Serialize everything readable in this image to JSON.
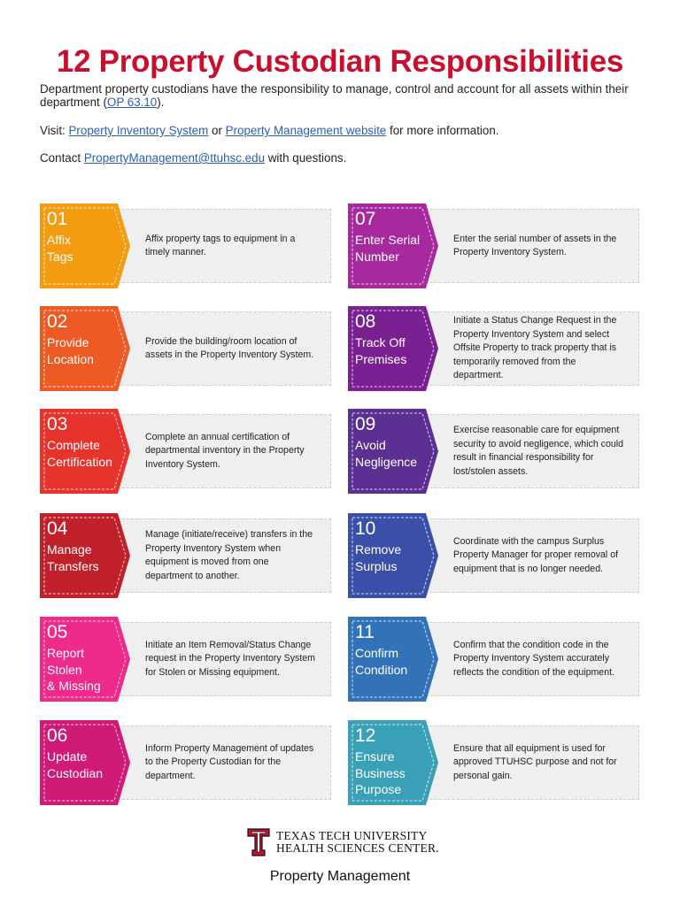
{
  "title": "12 Property Custodian Responsibilities",
  "intro": {
    "text_before": "Department property custodians have the responsibility to manage, control and account for all assets within their department (",
    "link": "OP 63.10",
    "text_after": ")."
  },
  "visit": {
    "prefix": "Visit: ",
    "link1": "Property Inventory System",
    "middle": " or ",
    "link2": "Property Management website",
    "suffix": " for more information."
  },
  "contact": {
    "prefix": "Contact ",
    "email": "PropertyManagement@ttuhsc.edu",
    "suffix": " with questions."
  },
  "items": [
    {
      "num": "01",
      "label": "Affix\nTags",
      "desc": "Affix property tags to equipment in a timely manner.",
      "color": "#f39c12"
    },
    {
      "num": "02",
      "label": "Provide\nLocation",
      "desc": "Provide the building/room location of assets in the Property Inventory System.",
      "color": "#ee5a24"
    },
    {
      "num": "03",
      "label": "Complete\nCertification",
      "desc": "Complete an annual certification of departmental inventory in the Property Inventory System.",
      "color": "#e8322c"
    },
    {
      "num": "04",
      "label": "Manage\nTransfers",
      "desc": "Manage (initiate/receive) transfers in the Property Inventory System when equipment is moved from one department to another.",
      "color": "#c0202a"
    },
    {
      "num": "05",
      "label": "Report\nStolen\n& Missing",
      "desc": "Initiate an Item Removal/Status Change request in the Property Inventory System for Stolen or Missing equipment.",
      "color": "#ee2a8a"
    },
    {
      "num": "06",
      "label": "Update\nCustodian",
      "desc": "Inform Property Management of updates to the Property Custodian for the department.",
      "color": "#d01a78"
    },
    {
      "num": "07",
      "label": "Enter Serial\nNumber",
      "desc": "Enter the serial number of assets in the Property Inventory System.",
      "color": "#a62a9e"
    },
    {
      "num": "08",
      "label": "Track Off\nPremises",
      "desc": "Initiate a Status Change Request in the Property Inventory System and select Offsite Property to track property that is temporarily removed from the department.",
      "color": "#7b2092"
    },
    {
      "num": "09",
      "label": "Avoid\nNegligence",
      "desc": "Exercise reasonable care for equipment security to avoid negligence, which could result in financial responsibility for lost/stolen assets.",
      "color": "#5b3092"
    },
    {
      "num": "10",
      "label": "Remove\nSurplus",
      "desc": "Coordinate with the campus Surplus Property Manager for proper removal of equipment that is no longer needed.",
      "color": "#3a4fa8"
    },
    {
      "num": "11",
      "label": "Confirm\nCondition",
      "desc": "Confirm that the condition code in the Property Inventory System accurately reflects the condition of the equipment.",
      "color": "#3272b8"
    },
    {
      "num": "12",
      "label": "Ensure\nBusiness\nPurpose",
      "desc": "Ensure that all equipment is used for approved TTUHSC purpose and not for personal gain.",
      "color": "#3aa0b8"
    }
  ],
  "footer": {
    "logo_icon": "double-t-logo-icon",
    "university_line1": "TEXAS TECH UNIVERSITY",
    "university_line2": "HEALTH SCIENCES CENTER.",
    "department": "Property Management"
  }
}
